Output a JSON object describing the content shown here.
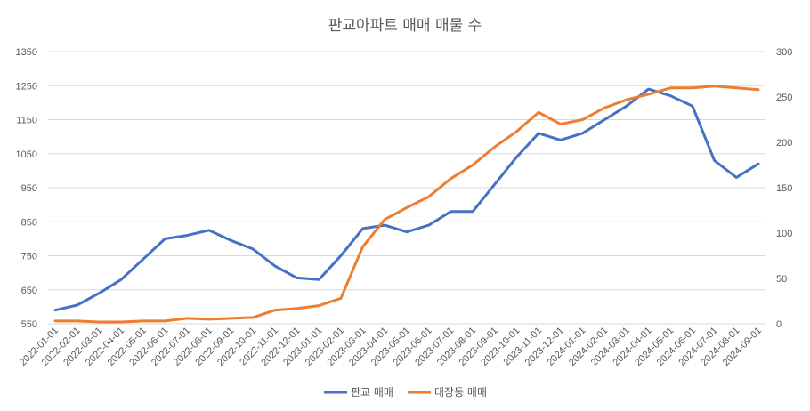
{
  "chart_data": {
    "type": "line",
    "title": "판교아파트 매매 매물 수",
    "x_labels": [
      "2022-01-01",
      "2022-02-01",
      "2022-03-01",
      "2022-04-01",
      "2022-05-01",
      "2022-06-01",
      "2022-07-01",
      "2022-08-01",
      "2022-09-01",
      "2022-10-01",
      "2022-11-01",
      "2022-12-01",
      "2023-01-01",
      "2023-02-01",
      "2023-03-01",
      "2023-04-01",
      "2023-05-01",
      "2023-06-01",
      "2023-07-01",
      "2023-08-01",
      "2023-09-01",
      "2023-10-01",
      "2023-11-01",
      "2023-12-01",
      "2024-01-01",
      "2024-02-01",
      "2024-03-01",
      "2024-04-01",
      "2024-05-01",
      "2024-06-01",
      "2024-07-01",
      "2024-08-01",
      "2024-09-01"
    ],
    "y_left": {
      "min": 550,
      "max": 1350,
      "ticks": [
        "550",
        "650",
        "750",
        "850",
        "950",
        "1050",
        "1150",
        "1250",
        "1350"
      ]
    },
    "y_right": {
      "min": 0,
      "max": 300,
      "ticks": [
        "0",
        "50",
        "100",
        "150",
        "200",
        "250",
        "300"
      ]
    },
    "grid": true,
    "legend_position": "bottom",
    "series": [
      {
        "name": "판교 매매",
        "axis": "left",
        "color": "#4472C4",
        "values": [
          590,
          605,
          640,
          680,
          740,
          800,
          810,
          825,
          795,
          770,
          720,
          685,
          680,
          750,
          830,
          840,
          820,
          840,
          880,
          880,
          960,
          1040,
          1110,
          1090,
          1110,
          1150,
          1190,
          1240,
          1220,
          1190,
          1030,
          980,
          1020
        ]
      },
      {
        "name": "대장동 매매",
        "axis": "right",
        "color": "#ED7D31",
        "values": [
          3,
          3,
          2,
          2,
          3,
          3,
          6,
          5,
          6,
          7,
          15,
          17,
          20,
          28,
          85,
          115,
          128,
          140,
          160,
          175,
          195,
          212,
          233,
          220,
          225,
          238,
          247,
          253,
          260,
          260,
          262,
          260,
          258
        ]
      }
    ]
  }
}
